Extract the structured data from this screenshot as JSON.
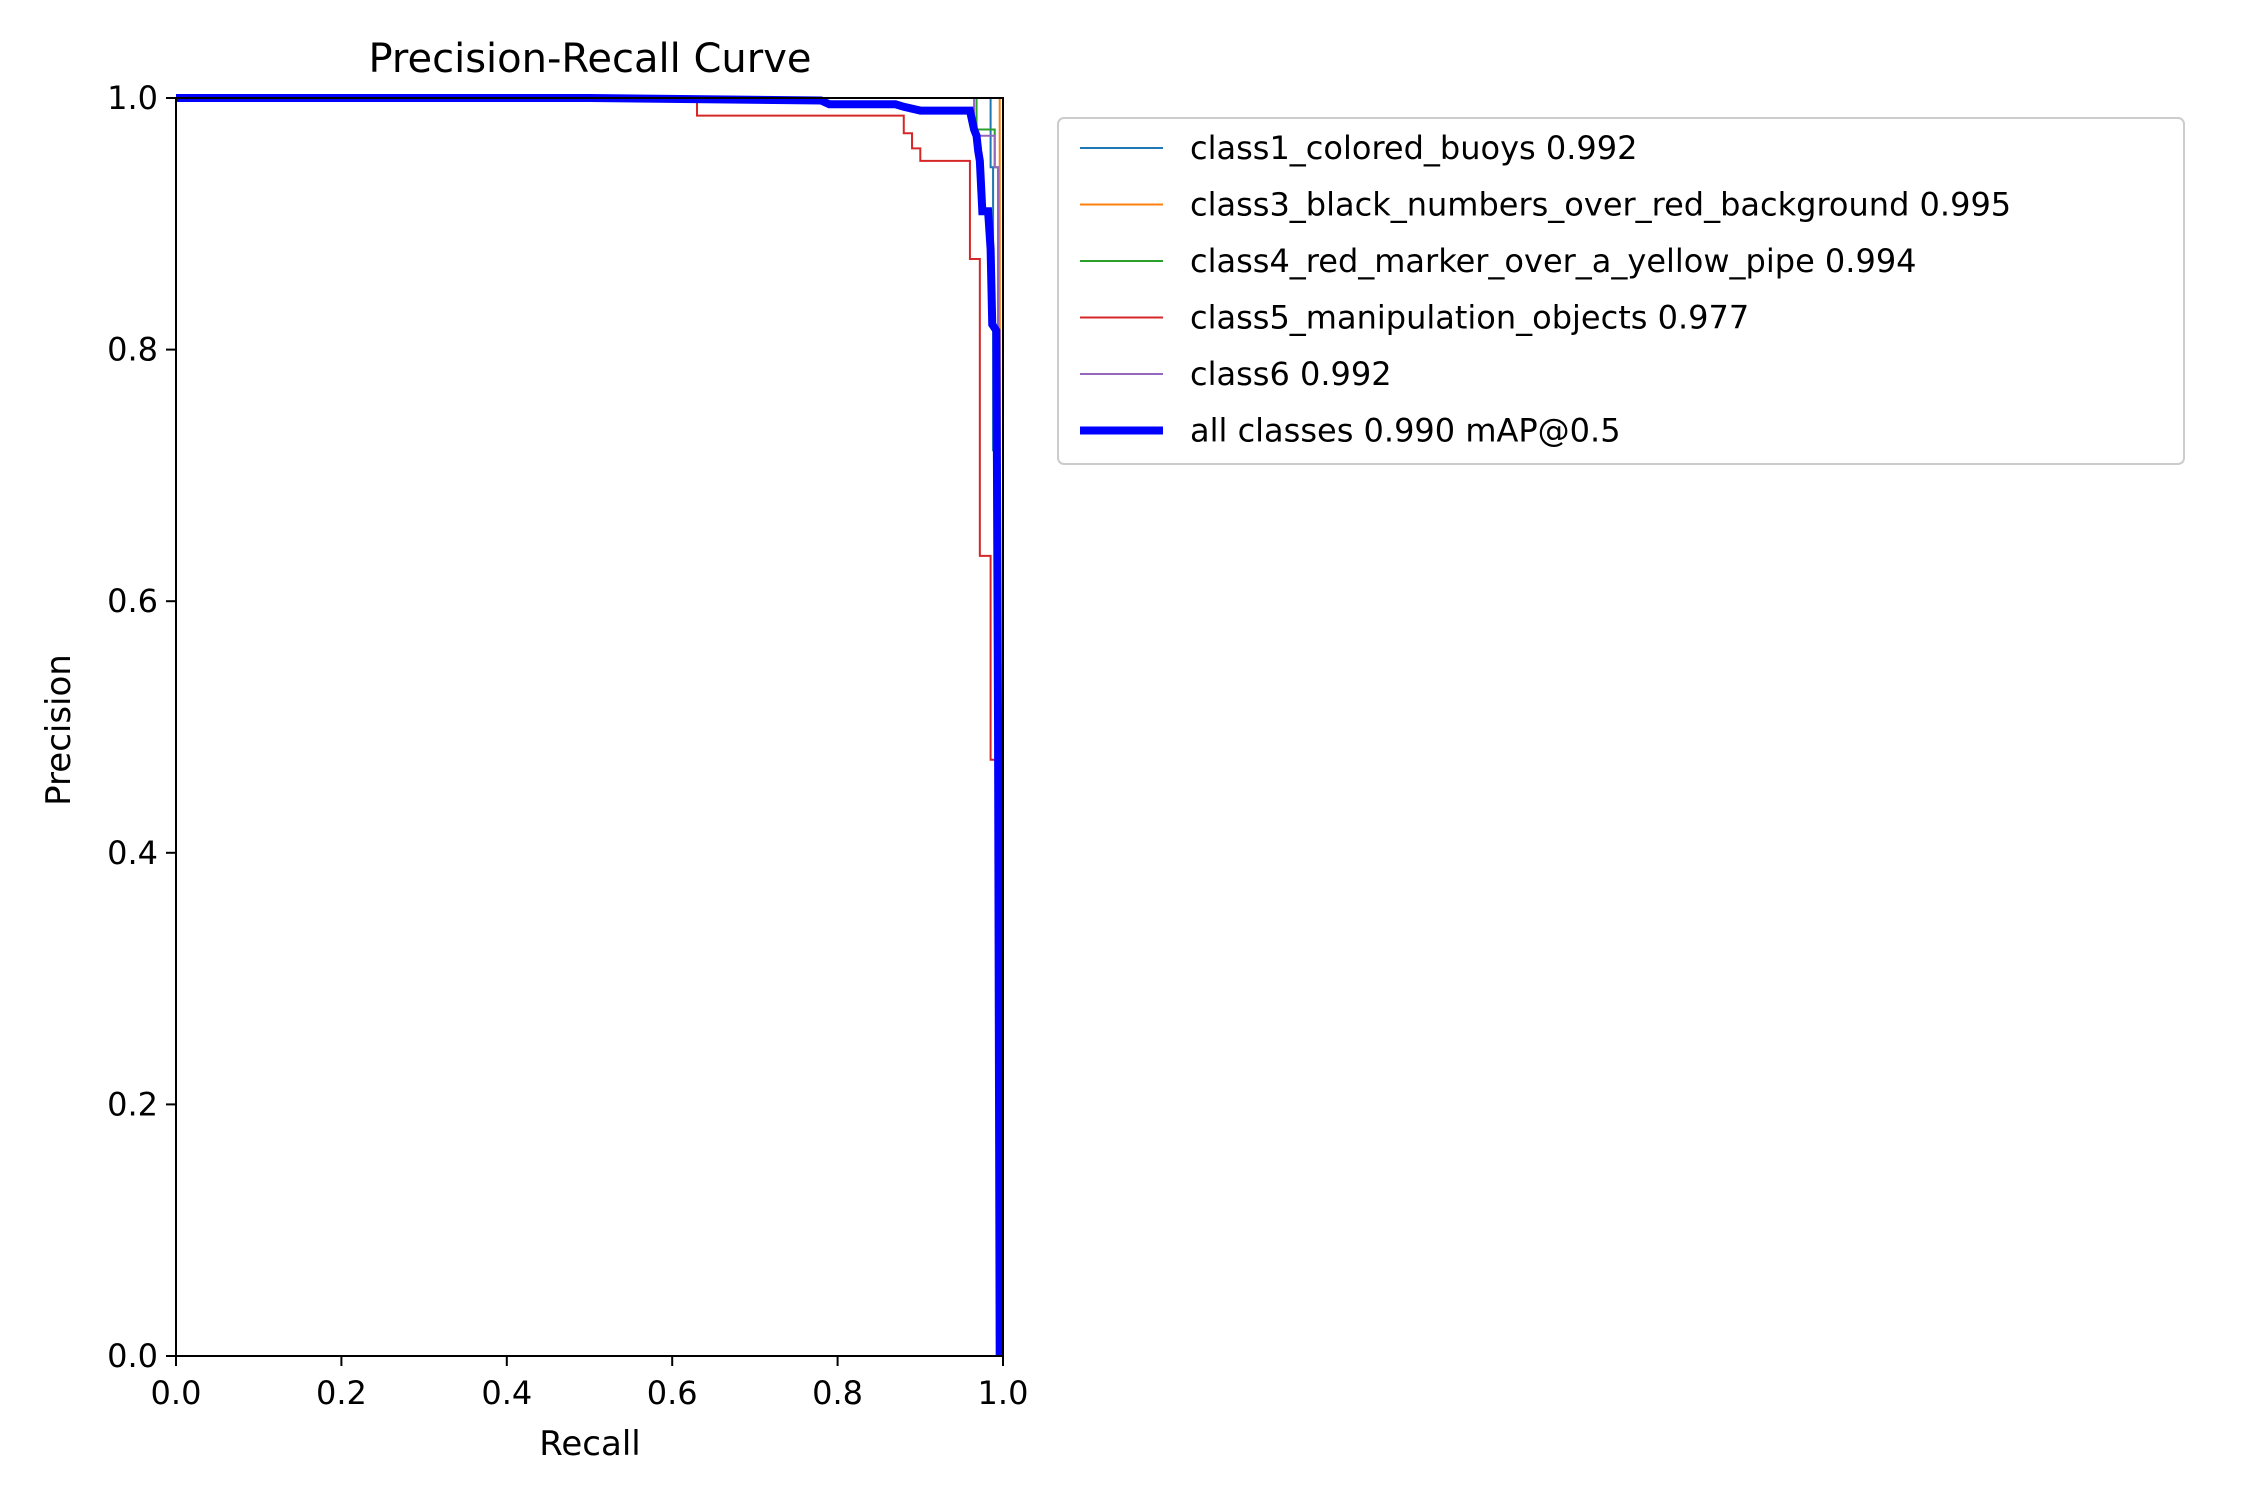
{
  "chart_data": {
    "type": "line",
    "title": "Precision-Recall Curve",
    "xlabel": "Recall",
    "ylabel": "Precision",
    "xlim": [
      0,
      1
    ],
    "ylim": [
      0,
      1
    ],
    "xticks": [
      "0.0",
      "0.2",
      "0.4",
      "0.6",
      "0.8",
      "1.0"
    ],
    "yticks": [
      "0.0",
      "0.2",
      "0.4",
      "0.6",
      "0.8",
      "1.0"
    ],
    "grid": false,
    "legend_position": "outside-right-top",
    "series": [
      {
        "name": "class1_colored_buoys 0.992",
        "color": "#1f77b4",
        "line_width": "thin",
        "points": [
          [
            0,
            1.0
          ],
          [
            0.985,
            1.0
          ],
          [
            0.985,
            0.945
          ],
          [
            0.988,
            0.945
          ],
          [
            0.988,
            0.72
          ],
          [
            0.992,
            0.72
          ],
          [
            0.993,
            0.0
          ]
        ]
      },
      {
        "name": "class3_black_numbers_over_red_background 0.995",
        "color": "#ff7f0e",
        "line_width": "thin",
        "points": [
          [
            0,
            1.0
          ],
          [
            0.996,
            1.0
          ],
          [
            0.997,
            0.0
          ]
        ]
      },
      {
        "name": "class4_red_marker_over_a_yellow_pipe 0.994",
        "color": "#2ca02c",
        "line_width": "thin",
        "points": [
          [
            0,
            1.0
          ],
          [
            0.968,
            1.0
          ],
          [
            0.968,
            0.975
          ],
          [
            0.99,
            0.975
          ],
          [
            0.99,
            0.945
          ],
          [
            0.994,
            0.945
          ],
          [
            0.995,
            0.0
          ]
        ]
      },
      {
        "name": "class5_manipulation_objects 0.977",
        "color": "#d62728",
        "line_width": "thin",
        "points": [
          [
            0,
            1.0
          ],
          [
            0.63,
            1.0
          ],
          [
            0.63,
            0.986
          ],
          [
            0.88,
            0.986
          ],
          [
            0.88,
            0.972
          ],
          [
            0.89,
            0.972
          ],
          [
            0.89,
            0.96
          ],
          [
            0.9,
            0.96
          ],
          [
            0.9,
            0.95
          ],
          [
            0.96,
            0.95
          ],
          [
            0.96,
            0.872
          ],
          [
            0.972,
            0.872
          ],
          [
            0.972,
            0.636
          ],
          [
            0.985,
            0.636
          ],
          [
            0.985,
            0.474
          ],
          [
            0.995,
            0.474
          ],
          [
            0.995,
            0.0
          ]
        ]
      },
      {
        "name": "class6 0.992",
        "color": "#9467bd",
        "line_width": "thin",
        "points": [
          [
            0,
            1.0
          ],
          [
            0.965,
            1.0
          ],
          [
            0.965,
            0.97
          ],
          [
            0.99,
            0.97
          ],
          [
            0.99,
            0.945
          ],
          [
            0.994,
            0.945
          ],
          [
            0.994,
            0.0
          ]
        ]
      },
      {
        "name": "all classes 0.990 mAP@0.5",
        "color": "#0000ff",
        "line_width": "thick",
        "points": [
          [
            0,
            1.0
          ],
          [
            0.5,
            1.0
          ],
          [
            0.78,
            0.998
          ],
          [
            0.79,
            0.995
          ],
          [
            0.87,
            0.995
          ],
          [
            0.88,
            0.993
          ],
          [
            0.9,
            0.99
          ],
          [
            0.96,
            0.99
          ],
          [
            0.965,
            0.975
          ],
          [
            0.968,
            0.97
          ],
          [
            0.97,
            0.958
          ],
          [
            0.972,
            0.95
          ],
          [
            0.975,
            0.91
          ],
          [
            0.982,
            0.91
          ],
          [
            0.985,
            0.88
          ],
          [
            0.987,
            0.82
          ],
          [
            0.992,
            0.815
          ],
          [
            0.994,
            0.5
          ],
          [
            0.996,
            0.0
          ]
        ]
      }
    ]
  }
}
